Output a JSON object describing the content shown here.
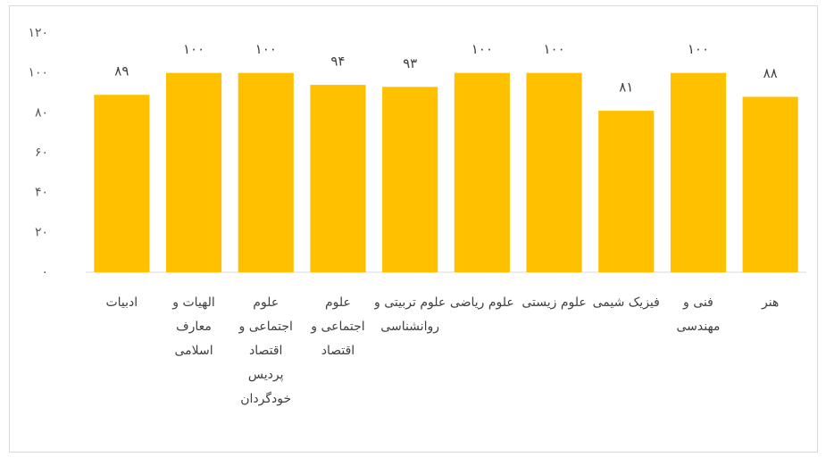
{
  "chart_data": {
    "type": "bar",
    "categories": [
      "ادبیات",
      "الهیات و معارف اسلامی",
      "علوم اجتماعی و اقتصاد پردیس خودگردان",
      "علوم اجتماعی و اقتصاد",
      "علوم تربیتی و روانشناسی",
      "علوم ریاضی",
      "علوم زیستی",
      "فیزیک شیمی",
      "فنی و مهندسی",
      "هنر"
    ],
    "values": [
      89,
      100,
      100,
      94,
      93,
      100,
      100,
      81,
      100,
      88
    ],
    "value_labels": [
      "۸۹",
      "۱۰۰",
      "۱۰۰",
      "۹۴",
      "۹۳",
      "۱۰۰",
      "۱۰۰",
      "۸۱",
      "۱۰۰",
      "۸۸"
    ],
    "color": "#ffc000",
    "ylim": [
      0,
      120
    ],
    "yticks": [
      {
        "value": 0,
        "label": "۰"
      },
      {
        "value": 20,
        "label": "۲۰"
      },
      {
        "value": 40,
        "label": "۴۰"
      },
      {
        "value": 60,
        "label": "۶۰"
      },
      {
        "value": 80,
        "label": "۸۰"
      },
      {
        "value": 100,
        "label": "۱۰۰"
      },
      {
        "value": 120,
        "label": "۱۲۰"
      }
    ],
    "grid": false
  }
}
